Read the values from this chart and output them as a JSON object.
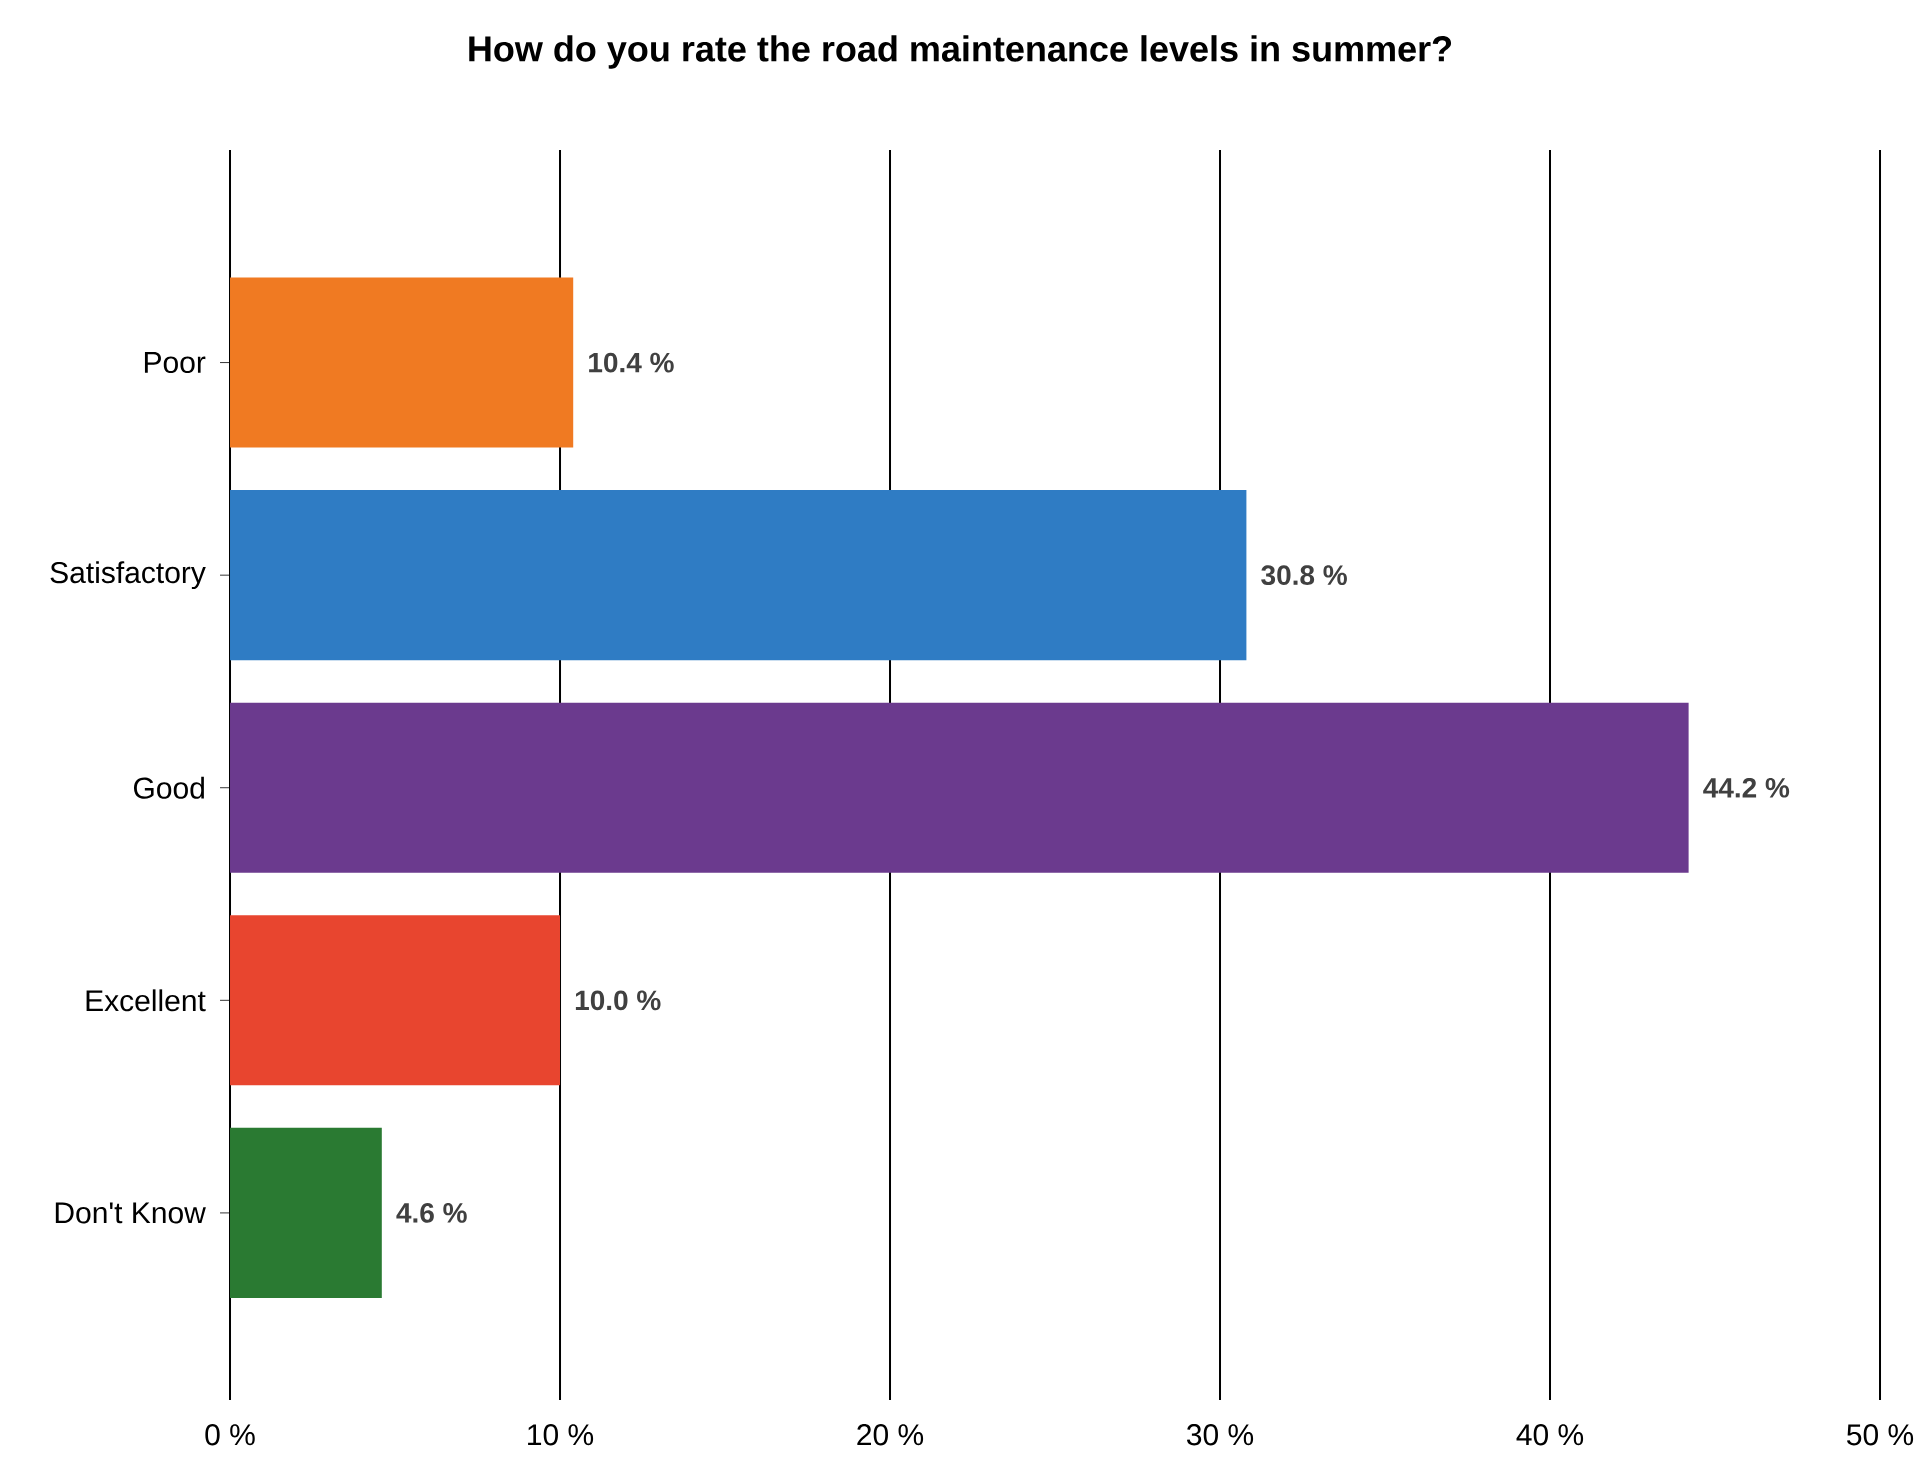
{
  "chart_data": {
    "type": "bar",
    "orientation": "horizontal",
    "title": "How do you rate the road maintenance levels in summer?",
    "categories": [
      "Poor",
      "Satisfactory",
      "Good",
      "Excellent",
      "Don't Know"
    ],
    "values": [
      10.4,
      30.8,
      44.2,
      10.0,
      4.6
    ],
    "value_labels": [
      "10.4 %",
      "30.8 %",
      "44.2 %",
      "10.0 %",
      "4.6 %"
    ],
    "colors": [
      "#f07a22",
      "#2f7cc4",
      "#6b3a8e",
      "#e8452f",
      "#2a7a32"
    ],
    "xlim": [
      0,
      50
    ],
    "xticks": [
      {
        "value": 0,
        "label": "0 %"
      },
      {
        "value": 10,
        "label": "10 %"
      },
      {
        "value": 20,
        "label": "20 %"
      },
      {
        "value": 30,
        "label": "30 %"
      },
      {
        "value": 40,
        "label": "40 %"
      },
      {
        "value": 50,
        "label": "50 %"
      }
    ],
    "grid": "x"
  }
}
